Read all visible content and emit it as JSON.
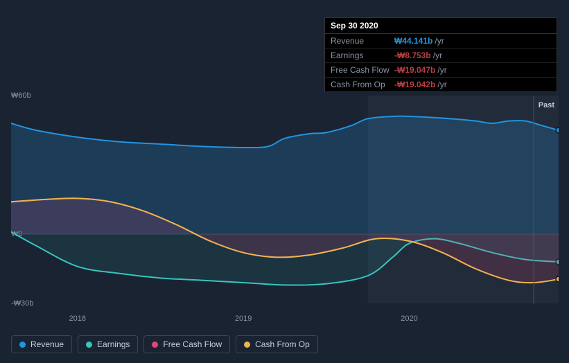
{
  "tooltip": {
    "date": "Sep 30 2020",
    "rows": [
      {
        "label": "Revenue",
        "value": "₩44.141b",
        "suffix": "/yr",
        "color": "#2394df"
      },
      {
        "label": "Earnings",
        "value": "-₩8.753b",
        "suffix": "/yr",
        "color": "#b93e42"
      },
      {
        "label": "Free Cash Flow",
        "value": "-₩19.047b",
        "suffix": "/yr",
        "color": "#b93e42"
      },
      {
        "label": "Cash From Op",
        "value": "-₩19.042b",
        "suffix": "/yr",
        "color": "#b93e42"
      }
    ]
  },
  "chart": {
    "type": "area-line",
    "background_color": "#1a2332",
    "grid_color": "#3a4555",
    "future_shade_color": "rgba(255,255,255,0.04)",
    "past_label": "Past",
    "y_axis": {
      "ticks": [
        {
          "label": "₩60b",
          "value": 60
        },
        {
          "label": "₩0",
          "value": 0
        },
        {
          "label": "-₩30b",
          "value": -30
        }
      ],
      "min": -30,
      "max": 60,
      "label_fontsize": 11,
      "label_color": "#8a95a5"
    },
    "x_axis": {
      "ticks": [
        {
          "label": "2018",
          "value": 2018
        },
        {
          "label": "2019",
          "value": 2019
        },
        {
          "label": "2020",
          "value": 2020
        }
      ],
      "min": 2017.6,
      "max": 2020.9,
      "label_fontsize": 11,
      "label_color": "#8a95a5"
    },
    "vertical_marker_x": 2020.75,
    "highlight_start_x": 2019.75,
    "series": [
      {
        "id": "revenue",
        "name": "Revenue",
        "color": "#2394df",
        "fill": "rgba(35,148,223,0.22)",
        "line_width": 2,
        "end_marker": true,
        "points": [
          [
            2017.6,
            48
          ],
          [
            2017.75,
            45
          ],
          [
            2018.0,
            42
          ],
          [
            2018.25,
            40
          ],
          [
            2018.5,
            39
          ],
          [
            2018.75,
            38
          ],
          [
            2019.0,
            37.5
          ],
          [
            2019.15,
            38
          ],
          [
            2019.25,
            41.5
          ],
          [
            2019.4,
            43.5
          ],
          [
            2019.5,
            44
          ],
          [
            2019.65,
            47
          ],
          [
            2019.75,
            50
          ],
          [
            2019.9,
            51
          ],
          [
            2020.0,
            51
          ],
          [
            2020.25,
            50
          ],
          [
            2020.4,
            49
          ],
          [
            2020.5,
            48
          ],
          [
            2020.6,
            49
          ],
          [
            2020.7,
            49
          ],
          [
            2020.8,
            47
          ],
          [
            2020.9,
            45
          ]
        ]
      },
      {
        "id": "earnings",
        "name": "Earnings",
        "color": "#35c6c0",
        "fill": "rgba(53,198,192,0.10)",
        "line_width": 2,
        "end_marker": true,
        "points": [
          [
            2017.6,
            1
          ],
          [
            2017.75,
            -5
          ],
          [
            2018.0,
            -14
          ],
          [
            2018.25,
            -17
          ],
          [
            2018.5,
            -19
          ],
          [
            2018.75,
            -20
          ],
          [
            2019.0,
            -21
          ],
          [
            2019.25,
            -22
          ],
          [
            2019.5,
            -21.5
          ],
          [
            2019.75,
            -18
          ],
          [
            2019.9,
            -10
          ],
          [
            2020.0,
            -4
          ],
          [
            2020.15,
            -2
          ],
          [
            2020.3,
            -4
          ],
          [
            2020.5,
            -8
          ],
          [
            2020.7,
            -11
          ],
          [
            2020.9,
            -12
          ]
        ]
      },
      {
        "id": "fcf",
        "name": "Free Cash Flow",
        "color": "#e4447c",
        "fill": "rgba(228,68,124,0.16)",
        "line_width": 2,
        "end_marker": false,
        "points": [
          [
            2017.6,
            14
          ],
          [
            2017.8,
            15
          ],
          [
            2018.0,
            15.5
          ],
          [
            2018.2,
            14
          ],
          [
            2018.4,
            10
          ],
          [
            2018.6,
            4
          ],
          [
            2018.8,
            -3
          ],
          [
            2019.0,
            -8
          ],
          [
            2019.2,
            -10
          ],
          [
            2019.4,
            -9
          ],
          [
            2019.6,
            -6
          ],
          [
            2019.8,
            -2
          ],
          [
            2020.0,
            -3
          ],
          [
            2020.2,
            -8
          ],
          [
            2020.4,
            -15
          ],
          [
            2020.6,
            -20
          ],
          [
            2020.75,
            -21
          ],
          [
            2020.9,
            -19.5
          ]
        ]
      },
      {
        "id": "cfo",
        "name": "Cash From Op",
        "color": "#eab54e",
        "fill": "none",
        "line_width": 2,
        "end_marker": true,
        "points": [
          [
            2017.6,
            14
          ],
          [
            2017.8,
            15
          ],
          [
            2018.0,
            15.5
          ],
          [
            2018.2,
            14
          ],
          [
            2018.4,
            10
          ],
          [
            2018.6,
            4
          ],
          [
            2018.8,
            -3
          ],
          [
            2019.0,
            -8
          ],
          [
            2019.2,
            -10
          ],
          [
            2019.4,
            -9
          ],
          [
            2019.6,
            -6
          ],
          [
            2019.8,
            -2
          ],
          [
            2020.0,
            -3
          ],
          [
            2020.2,
            -8
          ],
          [
            2020.4,
            -15
          ],
          [
            2020.6,
            -20
          ],
          [
            2020.75,
            -21
          ],
          [
            2020.9,
            -19.5
          ]
        ]
      }
    ]
  },
  "legend": {
    "border_color": "#3a4555",
    "items": [
      {
        "id": "revenue",
        "label": "Revenue",
        "color": "#2394df"
      },
      {
        "id": "earnings",
        "label": "Earnings",
        "color": "#35c6c0"
      },
      {
        "id": "fcf",
        "label": "Free Cash Flow",
        "color": "#e4447c"
      },
      {
        "id": "cfo",
        "label": "Cash From Op",
        "color": "#eab54e"
      }
    ]
  }
}
